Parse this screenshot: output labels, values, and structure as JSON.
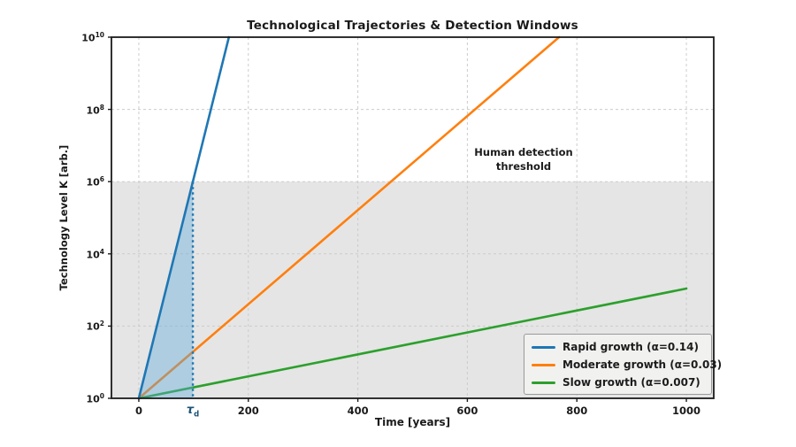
{
  "chart_data": {
    "type": "line",
    "title": "Technological Trajectories & Detection Windows",
    "xlabel": "Time [years]",
    "ylabel": "Technology Level K [arb.]",
    "x_scale": "linear",
    "y_scale": "log",
    "xlim": [
      -50,
      1050
    ],
    "ylim_exponents": [
      0,
      10
    ],
    "x_ticks": [
      0,
      200,
      400,
      600,
      800,
      1000
    ],
    "y_tick_exponents": [
      0,
      2,
      4,
      6,
      8,
      10
    ],
    "grid": {
      "visible": true,
      "style": "dashed",
      "color": "#cccccc"
    },
    "frame_color": "#1b1b1b",
    "series": [
      {
        "name": "Rapid growth (α=0.14)",
        "color": "#1f77b4",
        "growth_rate": 0.14,
        "points": [
          {
            "t": 0,
            "K": 1
          },
          {
            "t": 164.5,
            "K": 10000000000.0
          }
        ]
      },
      {
        "name": "Moderate growth (α=0.03)",
        "color": "#ff7f0e",
        "growth_rate": 0.03,
        "points": [
          {
            "t": 0,
            "K": 1
          },
          {
            "t": 767.5,
            "K": 10000000000.0
          }
        ]
      },
      {
        "name": "Slow growth (α=0.007)",
        "color": "#2ca02c",
        "growth_rate": 0.007,
        "points": [
          {
            "t": 0,
            "K": 1
          },
          {
            "t": 1000,
            "K": 1096
          }
        ]
      }
    ],
    "threshold_band": {
      "label": "Human detection threshold",
      "lower_exponent": 0,
      "upper_exponent": 6,
      "fill": "#e5e5e5"
    },
    "detection_marker": {
      "label_base": "τ",
      "label_sub": "d",
      "t": 98.7,
      "line_color": "#1f77b4",
      "label_color": "#1a5276",
      "style": "dotted"
    },
    "detection_window_fill": {
      "color": "#5da9dc",
      "opacity": 0.4,
      "description": "triangle between rapid-growth line and τd line below 10^6"
    },
    "legend_position": "lower right"
  }
}
